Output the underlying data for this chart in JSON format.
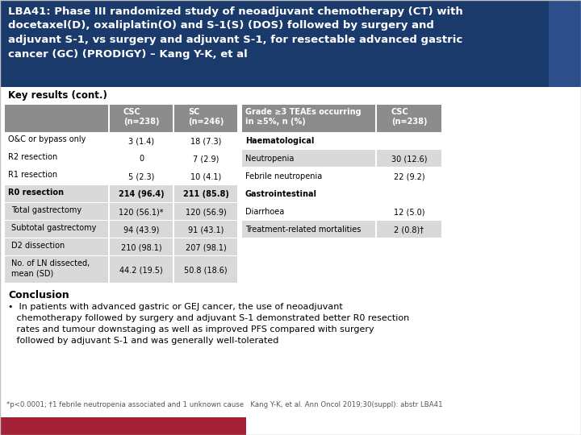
{
  "title_line1": "LBA41: Phase III randomized study of neoadjuvant chemotherapy (CT) with",
  "title_line2": "docetaxel(D), oxaliplatin(O) and S-1(S) (DOS) followed by surgery and",
  "title_line3": "adjuvant S-1, vs surgery and adjuvant S-1, for resectable advanced gastric",
  "title_line4": "cancer (GC) (PRODIGY) – Kang Y-K, et al",
  "title_bg": "#1a3a6b",
  "title_side_bg": "#2c4f8c",
  "title_color": "#ffffff",
  "key_results_label": "Key results (cont.)",
  "header_bg": "#8c8c8c",
  "header_color": "#ffffff",
  "row_alt_bg": "#d9d9d9",
  "row_bg": "#ffffff",
  "table1_rows": [
    [
      "O&C or bypass only",
      "3 (1.4)",
      "18 (7.3)",
      false,
      false
    ],
    [
      "R2 resection",
      "0",
      "7 (2.9)",
      false,
      false
    ],
    [
      "R1 resection",
      "5 (2.3)",
      "10 (4.1)",
      false,
      false
    ],
    [
      "R0 resection",
      "214 (96.4)",
      "211 (85.8)",
      true,
      false
    ],
    [
      "Total gastrectomy",
      "120 (56.1)*",
      "120 (56.9)",
      false,
      true
    ],
    [
      "Subtotal gastrectomy",
      "94 (43.9)",
      "91 (43.1)",
      false,
      true
    ],
    [
      "D2 dissection",
      "210 (98.1)",
      "207 (98.1)",
      false,
      true
    ],
    [
      "No. of LN dissected,\nmean (SD)",
      "44.2 (19.5)",
      "50.8 (18.6)",
      false,
      true
    ]
  ],
  "table2_rows": [
    [
      "Haematological",
      "",
      true,
      false
    ],
    [
      "Neutropenia",
      "30 (12.6)",
      false,
      false
    ],
    [
      "Febrile neutropenia",
      "22 (9.2)",
      false,
      false
    ],
    [
      "Gastrointestinal",
      "",
      true,
      false
    ],
    [
      "Diarrhoea",
      "12 (5.0)",
      false,
      false
    ],
    [
      "Treatment-related mortalities",
      "2 (0.8)†",
      false,
      false
    ]
  ],
  "conclusion_title": "Conclusion",
  "conclusion_bullet": "•  In patients with advanced gastric or GEJ cancer, the use of neoadjuvant\n   chemotherapy followed by surgery and adjuvant S-1 demonstrated better R0 resection\n   rates and tumour downstaging as well as improved PFS compared with surgery\n   followed by adjuvant S-1 and was generally well-tolerated",
  "footnote": "*p<0.0001; †1 febrile neutropenia associated and 1 unknown cause   Kang Y-K, et al. Ann Oncol 2019;30(suppl): abstr LBA41",
  "footer_bar_color": "#a32035",
  "bg_color": "#ffffff",
  "border_color": "#c0c0c0"
}
